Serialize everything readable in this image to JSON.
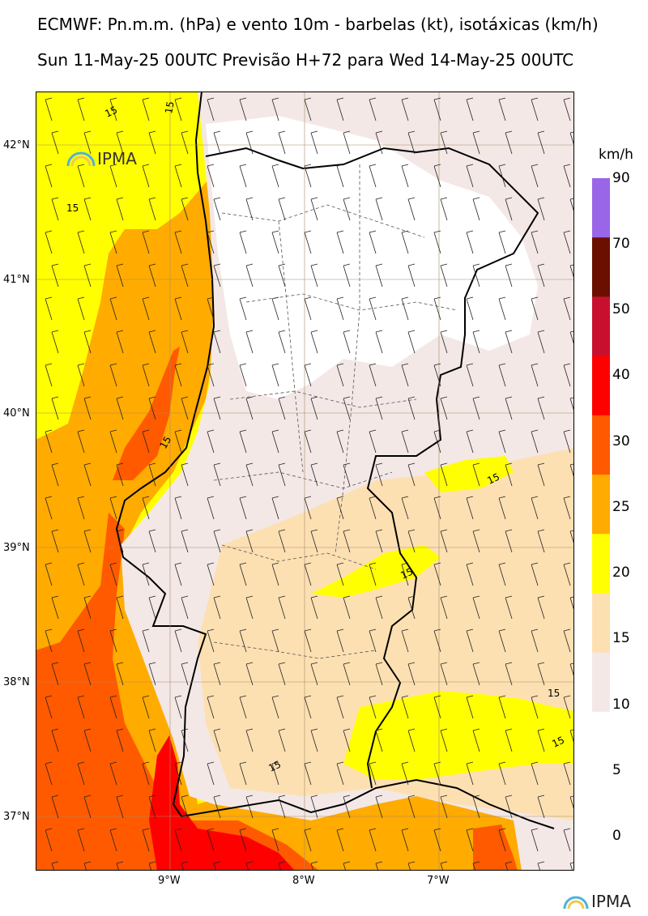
{
  "header": {
    "title": "ECMWF: Pn.m.m. (hPa) e vento 10m - barbelas (kt), isotáxicas (km/h)",
    "subtitle": "Sun 11-May-25 00UTC Previsão H+72 para Wed 14-May-25 00UTC"
  },
  "map": {
    "lat_labels": [
      "42°N",
      "41°N",
      "40°N",
      "39°N",
      "38°N",
      "37°N"
    ],
    "lon_labels": [
      "9°W",
      "8°W",
      "7°W"
    ],
    "contour_label": "15",
    "logo_text": "IPMA"
  },
  "colorbar": {
    "unit": "km/h",
    "labels": [
      "90",
      "70",
      "50",
      "40",
      "30",
      "25",
      "20",
      "15",
      "10",
      "5",
      "0"
    ],
    "colors": [
      "#9966e8",
      "#6b0f00",
      "#c8102e",
      "#ff0000",
      "#ff5a00",
      "#ffab00",
      "#ffff00",
      "#fde0b2",
      "#f3e8e6",
      "#ffffff"
    ]
  },
  "footer": {
    "logo_text": "IPMA"
  }
}
